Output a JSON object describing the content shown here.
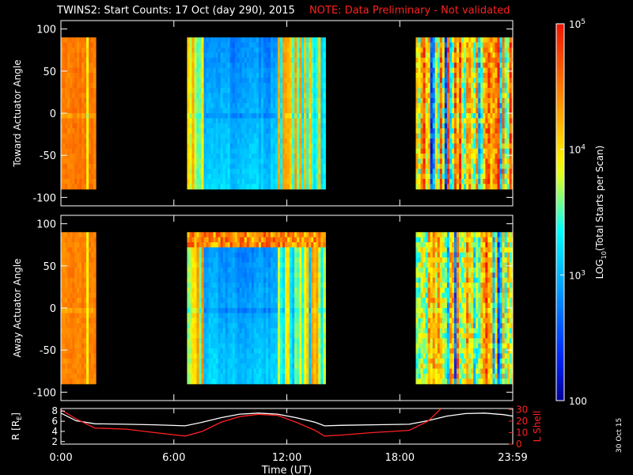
{
  "header": {
    "title": "TWINS2: Start Counts: 17 Oct (day 290), 2015",
    "note": "NOTE: Data Preliminary - Not validated"
  },
  "date_stamp": "30 Oct 15",
  "colors": {
    "background": "#000000",
    "axes": "#ffffff",
    "note_text": "#ff2020",
    "r_trace": "#ffffff",
    "lshell_trace": "#ff2020",
    "lshell_axis": "#ff2020"
  },
  "chart_data": [
    {
      "type": "heatmap",
      "panel": "toward",
      "ylabel": "Toward Actuator Angle",
      "ylim": [
        -110,
        110
      ],
      "yticks": [
        100,
        50,
        0,
        -50,
        -100
      ],
      "xlim": [
        0,
        24
      ],
      "xticks": [
        0,
        6,
        12,
        18,
        24
      ],
      "data_y_range": [
        -90,
        90
      ],
      "data_intervals_hours": [
        [
          -0.15,
          1.85
        ],
        [
          6.7,
          14.05
        ],
        [
          18.85,
          24.2
        ]
      ],
      "scale": "log",
      "colorbar": {
        "label_prefix": "LOG",
        "label_subscript": "10",
        "label_suffix": "(Total Starts per Scan)",
        "range": [
          100,
          100000
        ],
        "tick_labels": [
          {
            "value": 100000,
            "base": "10",
            "exp": "5"
          },
          {
            "value": 10000,
            "base": "10",
            "exp": "4"
          },
          {
            "value": 1000,
            "base": "10",
            "exp": "3"
          },
          {
            "value": 100,
            "base": "100",
            "exp": ""
          }
        ]
      }
    },
    {
      "type": "heatmap",
      "panel": "away",
      "ylabel": "Away Actuator Angle",
      "ylim": [
        -110,
        110
      ],
      "yticks": [
        100,
        50,
        0,
        -50,
        -100
      ],
      "xlim": [
        0,
        24
      ],
      "xticks": [
        0,
        6,
        12,
        18,
        24
      ],
      "data_y_range": [
        -90,
        90
      ],
      "data_intervals_hours": [
        [
          -0.15,
          1.85
        ],
        [
          6.7,
          14.05
        ],
        [
          18.85,
          24.2
        ]
      ],
      "scale": "log"
    },
    {
      "type": "line",
      "panel": "orbit",
      "xlim": [
        0,
        24
      ],
      "xticks": [
        0,
        6,
        12,
        18,
        24
      ],
      "xtick_labels": [
        "0:00",
        "6:00",
        "12:00",
        "18:00",
        "23:59"
      ],
      "xlabel": "Time (UT)",
      "ylabel_left_main": "R [R",
      "ylabel_left_sub": "E",
      "ylabel_left_end": "]",
      "ylim_left": [
        1.5,
        8.5
      ],
      "yticks_left": [
        2,
        4,
        6,
        8
      ],
      "ylabel_right": "L Shell",
      "ylim_right": [
        0,
        31
      ],
      "yticks_right": [
        0,
        10,
        20,
        30
      ],
      "series": [
        {
          "axis": "left",
          "x": [
            0,
            0.8,
            1.8,
            3.5,
            5,
            6.6,
            7.5,
            8.5,
            9.5,
            10.5,
            11.5,
            12.5,
            13.5,
            14,
            15,
            16.5,
            18.5,
            19.5,
            20.5,
            21.5,
            22.5,
            23.5,
            24
          ],
          "y": [
            7.6,
            6.1,
            5.5,
            5.4,
            5.3,
            5.1,
            5.8,
            6.7,
            7.4,
            7.6,
            7.4,
            6.7,
            5.8,
            5.1,
            5.2,
            5.3,
            5.4,
            6.1,
            7.0,
            7.5,
            7.6,
            7.3,
            7.0
          ]
        },
        {
          "axis": "right",
          "x": [
            0,
            0.8,
            1.8,
            3.5,
            5,
            6.6,
            7.5,
            8.5,
            9.5,
            10.5,
            11.5,
            12.5,
            13.5,
            14,
            15,
            16.5,
            18.5,
            19.5,
            20.2
          ],
          "y": [
            30,
            22,
            14,
            13,
            10,
            7,
            11,
            19,
            24,
            26,
            25,
            19,
            12,
            7,
            8,
            10,
            12,
            20,
            31
          ]
        }
      ]
    }
  ]
}
